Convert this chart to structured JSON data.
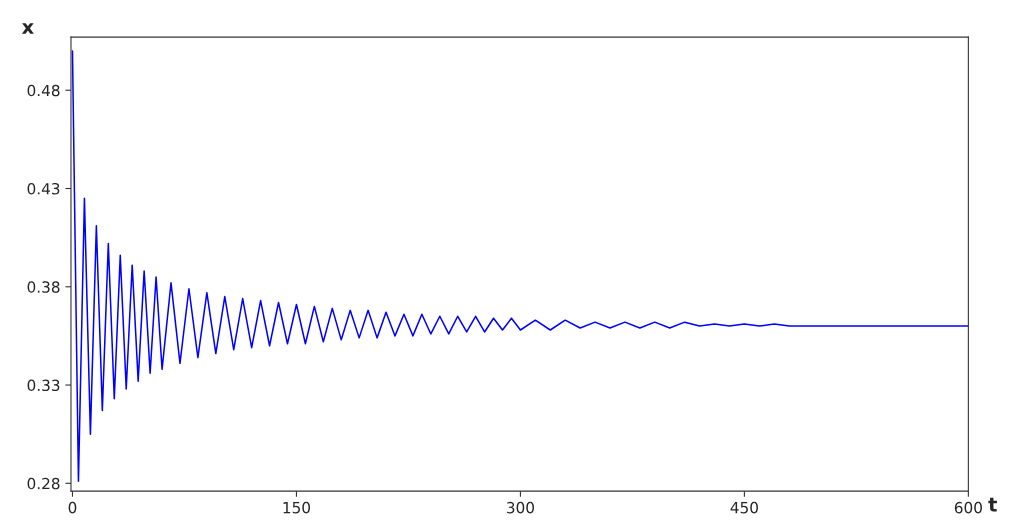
{
  "chart_data": {
    "type": "line",
    "xlabel": "t",
    "ylabel": "x",
    "x": [
      0,
      4,
      8,
      12,
      16,
      20,
      24,
      28,
      32,
      36,
      40,
      44,
      48,
      52,
      56,
      60,
      66,
      72,
      78,
      84,
      90,
      96,
      102,
      108,
      114,
      120,
      126,
      132,
      138,
      144,
      150,
      156,
      162,
      168,
      174,
      180,
      186,
      192,
      198,
      204,
      210,
      216,
      222,
      228,
      234,
      240,
      246,
      252,
      258,
      264,
      270,
      276,
      282,
      288,
      294,
      300,
      310,
      320,
      330,
      340,
      350,
      360,
      370,
      380,
      390,
      400,
      410,
      420,
      430,
      440,
      450,
      460,
      470,
      480,
      600
    ],
    "series": [
      {
        "color": "#0000ff",
        "values": [
          0.5,
          0.281,
          0.425,
          0.305,
          0.411,
          0.317,
          0.402,
          0.323,
          0.396,
          0.328,
          0.391,
          0.332,
          0.388,
          0.336,
          0.385,
          0.338,
          0.382,
          0.341,
          0.379,
          0.344,
          0.377,
          0.346,
          0.375,
          0.348,
          0.374,
          0.349,
          0.373,
          0.35,
          0.372,
          0.351,
          0.371,
          0.351,
          0.37,
          0.352,
          0.369,
          0.353,
          0.368,
          0.354,
          0.368,
          0.354,
          0.367,
          0.355,
          0.366,
          0.355,
          0.366,
          0.356,
          0.365,
          0.356,
          0.365,
          0.357,
          0.365,
          0.357,
          0.364,
          0.358,
          0.364,
          0.358,
          0.363,
          0.358,
          0.363,
          0.359,
          0.362,
          0.359,
          0.362,
          0.359,
          0.362,
          0.359,
          0.362,
          0.36,
          0.361,
          0.36,
          0.361,
          0.36,
          0.361,
          0.36,
          0.36
        ]
      }
    ],
    "xlim": [
      -1,
      600
    ],
    "ylim": [
      0.276,
      0.507
    ],
    "xticks": [
      0,
      150,
      300,
      450,
      600
    ],
    "yticks": [
      {
        "value": 0.28,
        "label": "0.28"
      },
      {
        "value": 0.33,
        "label": "0.33"
      },
      {
        "value": 0.38,
        "label": "0.38"
      },
      {
        "value": 0.43,
        "label": "0.43"
      },
      {
        "value": 0.48,
        "label": "0.48"
      }
    ],
    "grid": false,
    "legend": false,
    "marker": "none",
    "line_style": "solid"
  }
}
